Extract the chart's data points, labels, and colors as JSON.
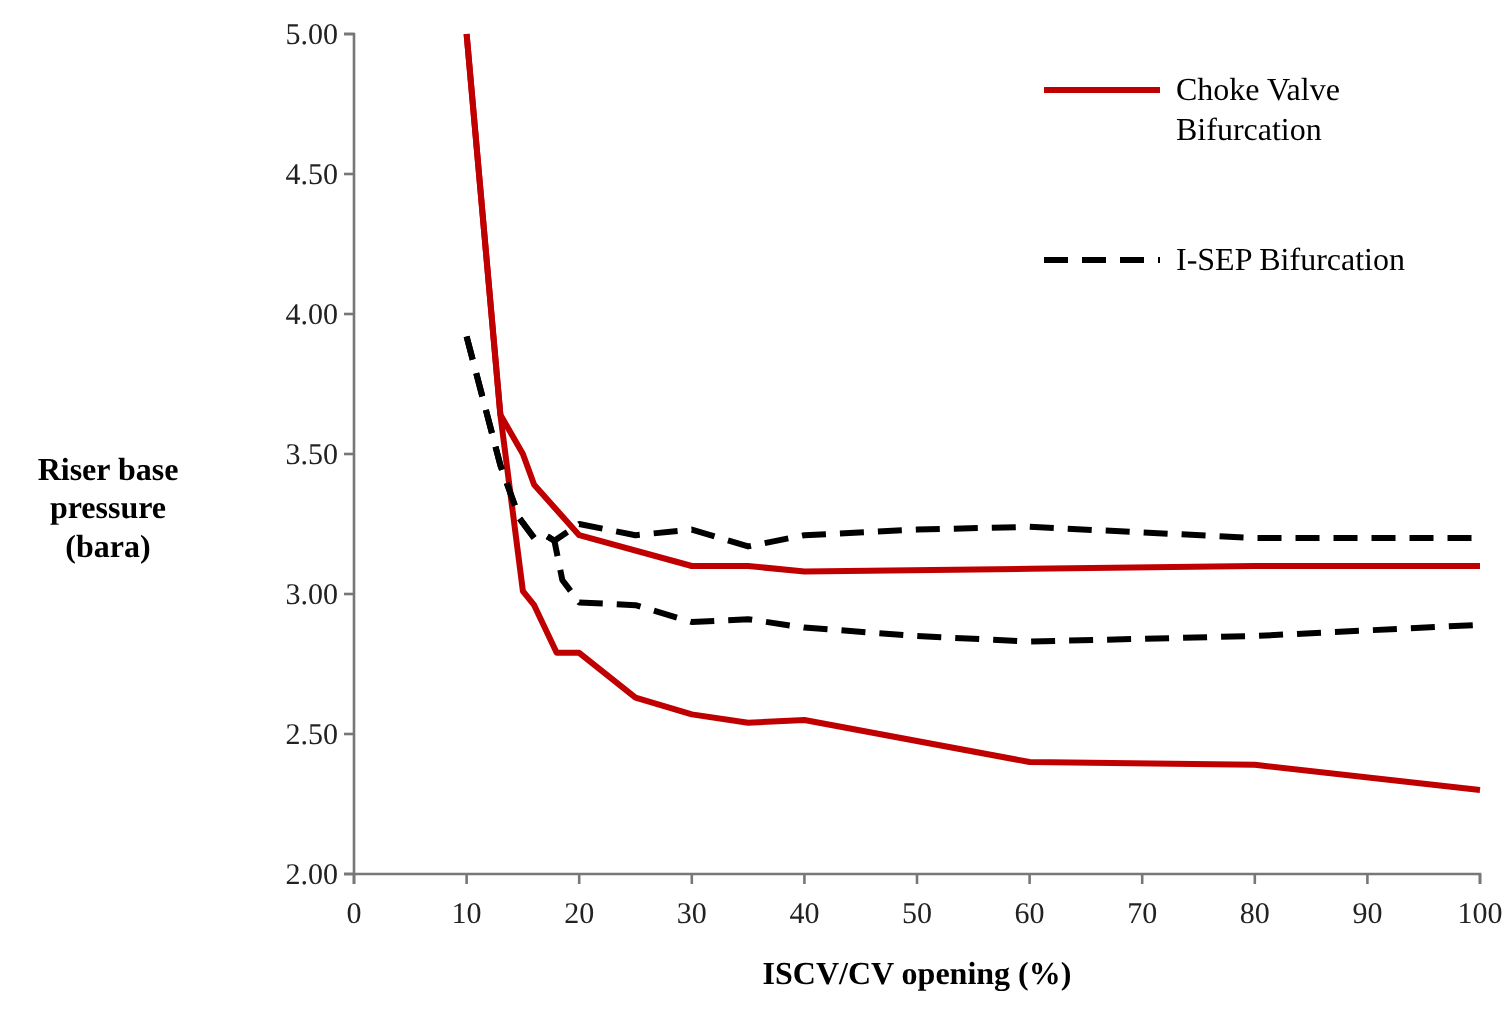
{
  "chart_data": {
    "type": "line",
    "xlabel": "ISCV/CV opening (%)",
    "ylabel": "Riser base pressure (bara)",
    "xlim": [
      0,
      100
    ],
    "xticks": [
      0,
      10,
      20,
      30,
      40,
      50,
      60,
      70,
      80,
      90,
      100
    ],
    "ylim": [
      2,
      5
    ],
    "yticks": [
      {
        "value": 2,
        "label": "2.00"
      },
      {
        "value": 2.5,
        "label": "2.50"
      },
      {
        "value": 3,
        "label": "3.00"
      },
      {
        "value": 3.5,
        "label": "3.50"
      },
      {
        "value": 4,
        "label": "4.00"
      },
      {
        "value": 4.5,
        "label": "4.50"
      },
      {
        "value": 5,
        "label": "5.00"
      }
    ],
    "grid": false,
    "legend": "top right",
    "series": [
      {
        "name": "Choke Valve Bifurcation",
        "color": "#c00000",
        "line_style": "solid",
        "x": [
          10,
          13,
          15,
          16,
          18,
          20,
          30,
          35,
          40,
          60,
          80,
          100
        ],
        "values": [
          5.0,
          3.64,
          3.5,
          3.39,
          3.3,
          3.21,
          3.1,
          3.1,
          3.08,
          3.09,
          3.1,
          3.1
        ]
      },
      {
        "color": "#c00000",
        "line_style": "solid",
        "x": [
          10,
          13,
          15,
          16,
          18,
          20,
          25,
          30,
          35,
          40,
          60,
          80,
          100
        ],
        "values": [
          5.0,
          3.64,
          3.01,
          2.96,
          2.79,
          2.79,
          2.63,
          2.57,
          2.54,
          2.55,
          2.4,
          2.39,
          2.3
        ]
      },
      {
        "name": "I-SEP Bifurcation",
        "color": "#000000",
        "line_style": "dashed",
        "x": [
          10,
          13,
          14.7,
          16,
          17,
          17.8,
          20,
          25,
          30,
          35,
          40,
          50,
          60,
          70,
          80,
          100
        ],
        "values": [
          3.92,
          3.46,
          3.27,
          3.2,
          3.21,
          3.19,
          3.25,
          3.21,
          3.23,
          3.17,
          3.21,
          3.23,
          3.24,
          3.22,
          3.2,
          3.2
        ]
      },
      {
        "color": "#000000",
        "line_style": "dashed",
        "x": [
          10,
          13,
          14.7,
          16,
          17,
          17.8,
          18.5,
          20,
          25,
          30,
          35,
          40,
          50,
          60,
          70,
          80,
          100
        ],
        "values": [
          3.92,
          3.46,
          3.27,
          3.2,
          3.21,
          3.19,
          3.05,
          2.97,
          2.96,
          2.9,
          2.91,
          2.88,
          2.85,
          2.83,
          2.84,
          2.85,
          2.89
        ]
      }
    ]
  }
}
